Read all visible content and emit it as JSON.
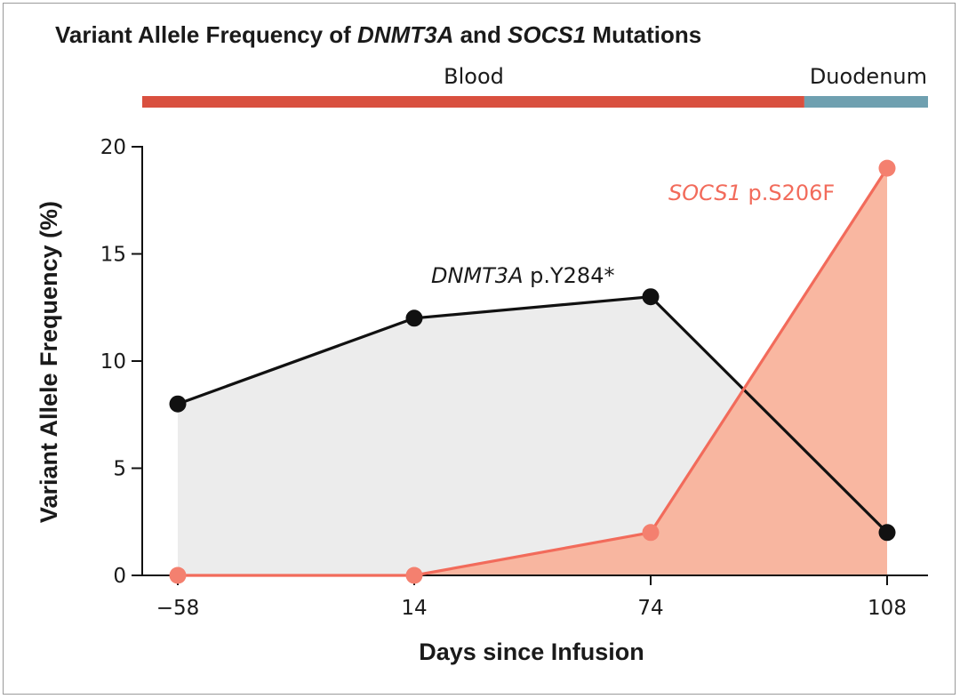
{
  "chart_data": {
    "type": "area",
    "title": {
      "parts": [
        {
          "text": "Variant Allele Frequency of ",
          "italic": false
        },
        {
          "text": "DNMT3A",
          "italic": true
        },
        {
          "text": " and ",
          "italic": false
        },
        {
          "text": "SOCS1",
          "italic": true
        },
        {
          "text": " Mutations",
          "italic": false
        }
      ]
    },
    "xlabel": "Days since Infusion",
    "ylabel": "Variant Allele Frequency (%)",
    "x_categories": [
      "−58",
      "14",
      "74",
      "108"
    ],
    "y_ticks": [
      0,
      5,
      10,
      15,
      20
    ],
    "ylim": [
      0,
      20
    ],
    "grid": false,
    "sample_segments": [
      {
        "label": "Blood",
        "from_index": 0,
        "to_index": 2.65,
        "color": "#d9503f"
      },
      {
        "label": "Duodenum",
        "from_index": 2.65,
        "to_index": 3.35,
        "color": "#6fa0b0"
      }
    ],
    "series": [
      {
        "name": "DNMT3A p.Y284*",
        "name_parts": [
          {
            "text": "DNMT3A",
            "italic": true
          },
          {
            "text": " p.Y284*",
            "italic": false
          }
        ],
        "values": [
          8,
          12,
          13,
          2
        ],
        "line_color": "#111111",
        "fill_color": "#ececec",
        "marker_color": "#111111"
      },
      {
        "name": "SOCS1 p.S206F",
        "name_parts": [
          {
            "text": "SOCS1",
            "italic": true
          },
          {
            "text": " p.S206F",
            "italic": false
          }
        ],
        "values": [
          0,
          0,
          2,
          19
        ],
        "line_color": "#f26b5b",
        "fill_color": "#f9b39c",
        "marker_color": "#f4806f"
      }
    ]
  }
}
